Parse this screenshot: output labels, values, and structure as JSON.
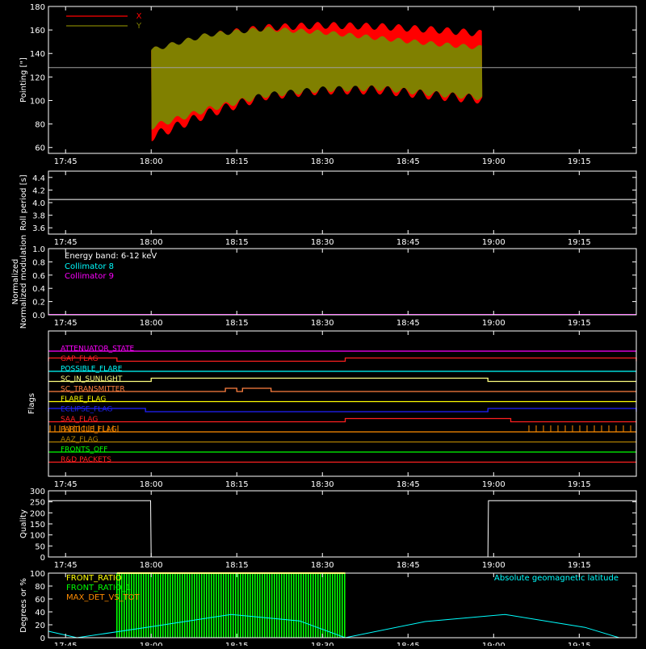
{
  "time_ticks": [
    "17:45",
    "18:00",
    "18:15",
    "18:30",
    "18:45",
    "19:00",
    "19:15"
  ],
  "colors": {
    "axis": "#ffffff",
    "x": "#ff0000",
    "y": "#808000",
    "roll": "#ffffff",
    "collimator8": "#00ffff",
    "collimator9": "#ff00ff",
    "quality": "#ffffff",
    "front_ratio": "#ffff00",
    "front_ratio_alt": "#00ff00",
    "max_det": "#ff8c00",
    "geomag": "#00ffff"
  },
  "chart_data": [
    {
      "id": "pointing",
      "type": "area",
      "ylabel": "Pointing [\"]",
      "ylim": [
        55,
        180
      ],
      "yticks": [
        "60",
        "80",
        "100",
        "120",
        "140",
        "160",
        "180"
      ],
      "grid": false,
      "legend_position": "top-left",
      "reference_line": 128,
      "series": [
        {
          "name": "X",
          "time": [
            "18:00",
            "18:10",
            "18:20",
            "18:30",
            "18:40",
            "18:50",
            "18:58"
          ],
          "min": [
            65,
            85,
            100,
            105,
            105,
            100,
            97
          ],
          "max": [
            145,
            158,
            165,
            167,
            166,
            163,
            160
          ]
        },
        {
          "name": "Y",
          "time": [
            "18:00",
            "18:10",
            "18:20",
            "18:30",
            "18:40",
            "18:50",
            "18:58"
          ],
          "min": [
            75,
            90,
            102,
            107,
            108,
            103,
            100
          ],
          "max": [
            145,
            158,
            163,
            160,
            155,
            150,
            147
          ]
        }
      ]
    },
    {
      "id": "roll",
      "type": "line",
      "ylabel": "Roll period [s]",
      "ylim": [
        3.5,
        4.5
      ],
      "yticks": [
        "3.6",
        "3.8",
        "4.0",
        "4.2",
        "4.4"
      ],
      "series": [
        {
          "time": [
            "17:42",
            "19:25"
          ],
          "values": [
            4.05,
            4.05
          ]
        }
      ]
    },
    {
      "id": "modulation",
      "type": "line",
      "ylabel": "Normalized modulation",
      "ylim": [
        0,
        1
      ],
      "yticks": [
        "0.0",
        "0.2",
        "0.4",
        "0.6",
        "0.8",
        "1.0"
      ],
      "annotation": "Energy band: 6-12 keV",
      "series": [
        {
          "name": "Collimator 8",
          "time": [
            "17:42",
            "19:25"
          ],
          "values": [
            0,
            0
          ]
        },
        {
          "name": "Collimator 9",
          "time": [
            "17:42",
            "19:25"
          ],
          "values": [
            0,
            0
          ]
        }
      ]
    },
    {
      "id": "flags",
      "type": "line",
      "ylabel": "Flags",
      "series": [
        {
          "name": "ATTENUATOR_STATE",
          "color": "#ff00ff",
          "high": []
        },
        {
          "name": "GAP_FLAG",
          "color": "#ff2020",
          "high": [
            [
              "17:42",
              "17:54"
            ],
            [
              "18:34",
              "19:25"
            ]
          ]
        },
        {
          "name": "POSSIBLE_FLARE",
          "color": "#00ffff",
          "high": []
        },
        {
          "name": "SC_IN_SUNLIGHT",
          "color": "#ffff80",
          "high": [
            [
              "18:00",
              "18:59"
            ]
          ]
        },
        {
          "name": "SC_TRANSMITTER",
          "color": "#ff8040",
          "high": [
            [
              "18:13",
              "18:15"
            ],
            [
              "18:16",
              "18:21"
            ]
          ]
        },
        {
          "name": "FLARE_FLAG",
          "color": "#ffff00",
          "high": []
        },
        {
          "name": "ECLIPSE_FLAG",
          "color": "#2020ff",
          "high": [
            [
              "17:42",
              "17:59"
            ],
            [
              "18:59",
              "19:25"
            ]
          ]
        },
        {
          "name": "SAA_FLAG",
          "color": "#ff2020",
          "high": [
            [
              "18:34",
              "19:03"
            ]
          ]
        },
        {
          "name": "PARTICLE_FLAG",
          "color": "#ff8c00",
          "high": []
        },
        {
          "name": "AAZ_FLAG",
          "color": "#b08000",
          "high": []
        },
        {
          "name": "FRONTS_OFF",
          "color": "#00ff00",
          "high": []
        },
        {
          "name": "R&D PACKETS",
          "color": "#ff2020",
          "high": []
        }
      ]
    },
    {
      "id": "quality",
      "type": "line",
      "ylabel": "Quality",
      "ylim": [
        0,
        300
      ],
      "yticks": [
        "0",
        "50",
        "100",
        "150",
        "200",
        "250",
        "300"
      ],
      "series": [
        {
          "time": [
            "17:42",
            "17:59.9",
            "18:00",
            "18:59",
            "18:59.1",
            "19:25"
          ],
          "values": [
            255,
            255,
            0,
            0,
            255,
            255
          ]
        }
      ]
    },
    {
      "id": "ratios",
      "type": "line",
      "ylabel": "Degrees or %",
      "ylim": [
        0,
        100
      ],
      "yticks": [
        "0",
        "20",
        "40",
        "60",
        "80",
        "100"
      ],
      "series": [
        {
          "name": "FRONT_RATIO",
          "time": [
            "17:54",
            "18:34"
          ],
          "values": [
            100,
            100
          ]
        },
        {
          "name": "FRONT_RATIO_1",
          "time": [
            "17:54",
            "18:34"
          ],
          "values": [
            100,
            100
          ]
        },
        {
          "name": "MAX_DET_VS_TOT",
          "time": [],
          "values": []
        },
        {
          "name": "Absolute geomagnetic latitude",
          "time": [
            "17:42",
            "17:47",
            "18:00",
            "18:14",
            "18:26",
            "18:34",
            "18:48",
            "19:02",
            "19:16",
            "19:22"
          ],
          "values": [
            10,
            0,
            17,
            36,
            26,
            0,
            25,
            36,
            16,
            0
          ]
        }
      ]
    }
  ]
}
